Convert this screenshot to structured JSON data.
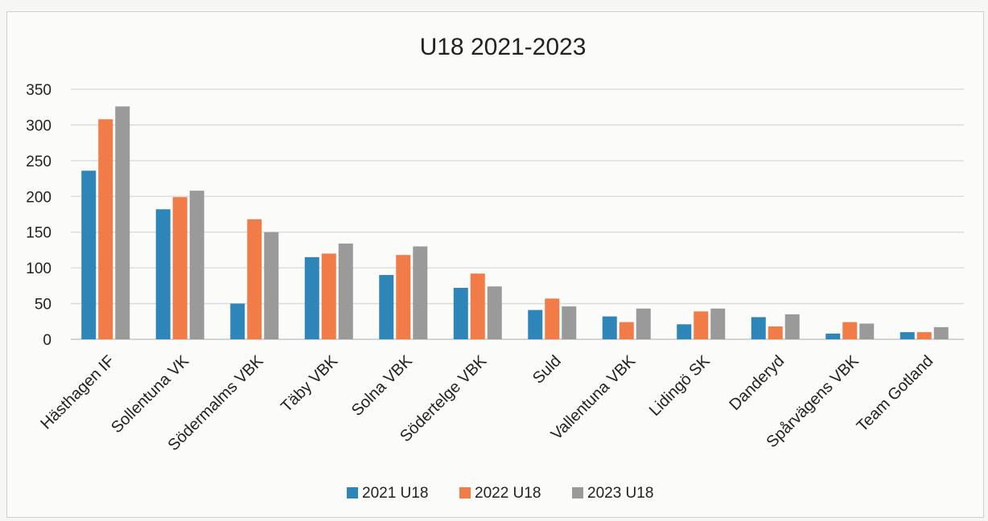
{
  "chart_data": {
    "type": "bar",
    "title": "U18 2021-2023",
    "xlabel": "",
    "ylabel": "",
    "ylim": [
      0,
      350
    ],
    "yticks": [
      0,
      50,
      100,
      150,
      200,
      250,
      300,
      350
    ],
    "grid": true,
    "legend_position": "bottom",
    "categories": [
      "Hästhagen IF",
      "Sollentuna VK",
      "Södermalms VBK",
      "Täby VBK",
      "Solna VBK",
      "Södertelge VBK",
      "Suld",
      "Vallentuna VBK",
      "Lidingö SK",
      "Danderyd",
      "Spårvägens VBK",
      "Team Gotland"
    ],
    "series": [
      {
        "name": "2021 U18",
        "color": "#2e86b8",
        "values": [
          236,
          182,
          50,
          115,
          90,
          72,
          41,
          32,
          21,
          31,
          8,
          10
        ]
      },
      {
        "name": "2022 U18",
        "color": "#f27c47",
        "values": [
          308,
          199,
          168,
          120,
          118,
          92,
          57,
          24,
          39,
          18,
          24,
          10
        ]
      },
      {
        "name": "2023 U18",
        "color": "#9a9a9a",
        "values": [
          326,
          208,
          150,
          134,
          130,
          74,
          46,
          43,
          43,
          35,
          22,
          17
        ]
      }
    ]
  }
}
